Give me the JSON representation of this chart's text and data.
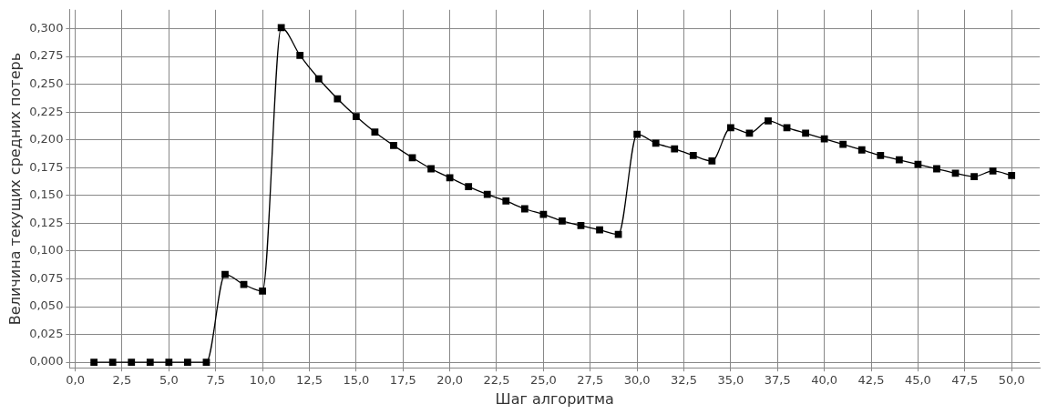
{
  "chart_data": {
    "type": "line",
    "xlabel": "Шаг алгоритма",
    "ylabel": "Величина текущих средних потерь",
    "x": [
      1,
      2,
      3,
      4,
      5,
      6,
      7,
      8,
      9,
      10,
      11,
      12,
      13,
      14,
      15,
      16,
      17,
      18,
      19,
      20,
      21,
      22,
      23,
      24,
      25,
      26,
      27,
      28,
      29,
      30,
      31,
      32,
      33,
      34,
      35,
      36,
      37,
      38,
      39,
      40,
      41,
      42,
      43,
      44,
      45,
      46,
      47,
      48,
      49,
      50
    ],
    "series": [
      {
        "color": "#000000",
        "values": [
          0,
          0,
          0,
          0,
          0,
          0,
          0,
          0.079,
          0.07,
          0.064,
          0.301,
          0.276,
          0.255,
          0.237,
          0.221,
          0.207,
          0.195,
          0.184,
          0.174,
          0.166,
          0.158,
          0.151,
          0.145,
          0.138,
          0.133,
          0.127,
          0.123,
          0.119,
          0.115,
          0.205,
          0.197,
          0.192,
          0.186,
          0.181,
          0.211,
          0.206,
          0.217,
          0.211,
          0.206,
          0.201,
          0.196,
          0.191,
          0.186,
          0.182,
          0.178,
          0.174,
          0.17,
          0.167,
          0.172,
          0.168
        ]
      }
    ],
    "xlim": [
      -0.3,
      51.5
    ],
    "ylim": [
      -0.005,
      0.317
    ],
    "xticks": [
      {
        "value": 0,
        "label": "0,0"
      },
      {
        "value": 2.5,
        "label": "2,5"
      },
      {
        "value": 5,
        "label": "5,0"
      },
      {
        "value": 7.5,
        "label": "7,5"
      },
      {
        "value": 10,
        "label": "10,0"
      },
      {
        "value": 12.5,
        "label": "12,5"
      },
      {
        "value": 15,
        "label": "15,0"
      },
      {
        "value": 17.5,
        "label": "17,5"
      },
      {
        "value": 20,
        "label": "20,0"
      },
      {
        "value": 22.5,
        "label": "22,5"
      },
      {
        "value": 25,
        "label": "25,0"
      },
      {
        "value": 27.5,
        "label": "27,5"
      },
      {
        "value": 30,
        "label": "30,0"
      },
      {
        "value": 32.5,
        "label": "32,5"
      },
      {
        "value": 35,
        "label": "35,0"
      },
      {
        "value": 37.5,
        "label": "37,5"
      },
      {
        "value": 40,
        "label": "40,0"
      },
      {
        "value": 42.5,
        "label": "42,5"
      },
      {
        "value": 45,
        "label": "45,0"
      },
      {
        "value": 47.5,
        "label": "47,5"
      },
      {
        "value": 50,
        "label": "50,0"
      }
    ],
    "yticks": [
      {
        "value": 0,
        "label": "0,000"
      },
      {
        "value": 0.025,
        "label": "0,025"
      },
      {
        "value": 0.05,
        "label": "0,050"
      },
      {
        "value": 0.075,
        "label": "0,075"
      },
      {
        "value": 0.1,
        "label": "0,100"
      },
      {
        "value": 0.125,
        "label": "0,125"
      },
      {
        "value": 0.15,
        "label": "0,150"
      },
      {
        "value": 0.175,
        "label": "0,175"
      },
      {
        "value": 0.2,
        "label": "0,200"
      },
      {
        "value": 0.225,
        "label": "0,225"
      },
      {
        "value": 0.25,
        "label": "0,250"
      },
      {
        "value": 0.275,
        "label": "0,275"
      },
      {
        "value": 0.3,
        "label": "0,300"
      }
    ],
    "grid": true,
    "marker": "square",
    "line_style": "solid",
    "legend": false
  }
}
